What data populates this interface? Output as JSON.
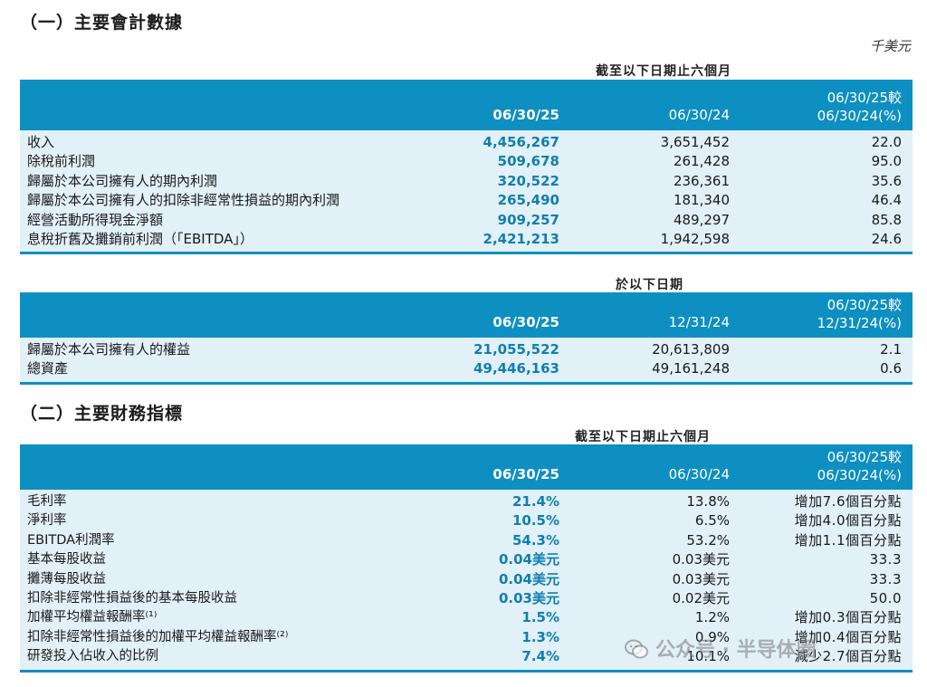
{
  "section1": {
    "title": "（一）主要會計數據",
    "unit": "千美元",
    "table_a": {
      "period": "截至以下日期止六個月",
      "headers": [
        "06/30/25",
        "06/30/24",
        "06/30/25較",
        "06/30/24(%)"
      ],
      "rows": [
        {
          "label": "收入",
          "v1": "4,456,267",
          "v2": "3,651,452",
          "v3": "22.0"
        },
        {
          "label": "除稅前利潤",
          "v1": "509,678",
          "v2": "261,428",
          "v3": "95.0"
        },
        {
          "label": "歸屬於本公司擁有人的期內利潤",
          "v1": "320,522",
          "v2": "236,361",
          "v3": "35.6"
        },
        {
          "label": "歸屬於本公司擁有人的扣除非經常性損益的期內利潤",
          "v1": "265,490",
          "v2": "181,340",
          "v3": "46.4"
        },
        {
          "label": "經營活動所得現金淨額",
          "v1": "909,257",
          "v2": "489,297",
          "v3": "85.8"
        },
        {
          "label": "息稅折舊及攤銷前利潤（「EBITDA」）",
          "v1": "2,421,213",
          "v2": "1,942,598",
          "v3": "24.6"
        }
      ]
    },
    "table_b": {
      "period": "於以下日期",
      "headers": [
        "06/30/25",
        "12/31/24",
        "06/30/25較",
        "12/31/24(%)"
      ],
      "rows": [
        {
          "label": "歸屬於本公司擁有人的權益",
          "v1": "21,055,522",
          "v2": "20,613,809",
          "v3": "2.1"
        },
        {
          "label": "總資產",
          "v1": "49,446,163",
          "v2": "49,161,248",
          "v3": "0.6"
        }
      ]
    }
  },
  "section2": {
    "title": "（二）主要財務指標",
    "table_c": {
      "period": "截至以下日期止六個月",
      "headers": [
        "06/30/25",
        "06/30/24",
        "06/30/25較",
        "06/30/24(%)"
      ],
      "rows": [
        {
          "label": "毛利率",
          "v1": "21.4%",
          "v2": "13.8%",
          "v3": "增加7.6個百分點"
        },
        {
          "label": "淨利率",
          "v1": "10.5%",
          "v2": "6.5%",
          "v3": "增加4.0個百分點"
        },
        {
          "label": "EBITDA利潤率",
          "v1": "54.3%",
          "v2": "53.2%",
          "v3": "增加1.1個百分點"
        },
        {
          "label": "基本每股收益",
          "v1": "0.04美元",
          "v2": "0.03美元",
          "v3": "33.3"
        },
        {
          "label": "攤薄每股收益",
          "v1": "0.04美元",
          "v2": "0.03美元",
          "v3": "33.3"
        },
        {
          "label": "扣除非經常性損益後的基本每股收益",
          "v1": "0.03美元",
          "v2": "0.02美元",
          "v3": "50.0"
        },
        {
          "label": "加權平均權益報酬率⁽¹⁾",
          "v1": "1.5%",
          "v2": "1.2%",
          "v3": "增加0.3個百分點"
        },
        {
          "label": "扣除非經常性損益後的加權平均權益報酬率⁽²⁾",
          "v1": "1.3%",
          "v2": "0.9%",
          "v3": "增加0.4個百分點"
        },
        {
          "label": "研發投入佔收入的比例",
          "v1": "7.4%",
          "v2": "10.1%",
          "v3": "減少2.7個百分點"
        }
      ]
    }
  },
  "watermark": {
    "text": "公众号 · 半导体圈"
  },
  "colors": {
    "header_bg": "#0e8fc1",
    "body_bg": "#e2f0f8",
    "highlight_text": "#0f7fb0"
  }
}
